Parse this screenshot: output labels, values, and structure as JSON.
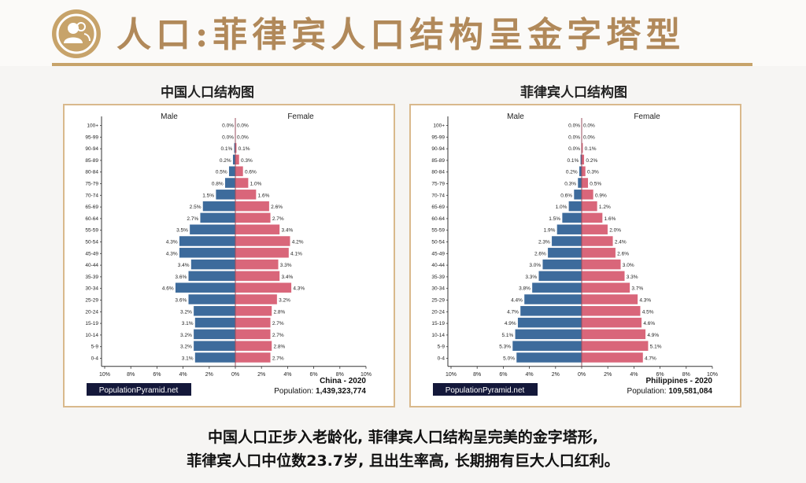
{
  "header": {
    "title": "人口:菲律宾人口结构呈金字塔型",
    "badge_icon": "user-group-icon"
  },
  "colors": {
    "male": "#3d6b9c",
    "female": "#d9667a",
    "accent": "#c7a36a",
    "frame": "#d9b98c"
  },
  "caption": {
    "line1": "中国人口正步入老龄化, 菲律宾人口结构呈完美的金字塔形,",
    "line2": "菲律宾人口中位数23.7岁, 且出生率高, 长期拥有巨大人口红利。"
  },
  "chart_data": [
    {
      "type": "bar",
      "title": "中国人口结构图",
      "left_label": "Male",
      "right_label": "Female",
      "age_groups": [
        "100+",
        "95-99",
        "90-94",
        "85-89",
        "80-84",
        "75-79",
        "70-74",
        "65-69",
        "60-64",
        "55-59",
        "50-54",
        "45-49",
        "40-44",
        "35-39",
        "30-34",
        "25-29",
        "20-24",
        "15-19",
        "10-14",
        "5-9",
        "0-4"
      ],
      "series": [
        {
          "name": "Male",
          "values": [
            0.0,
            0.0,
            0.1,
            0.2,
            0.5,
            0.8,
            1.5,
            2.5,
            2.7,
            3.5,
            4.3,
            4.3,
            3.4,
            3.6,
            4.6,
            3.6,
            3.2,
            3.1,
            3.2,
            3.2,
            3.1
          ]
        },
        {
          "name": "Female",
          "values": [
            0.0,
            0.0,
            0.1,
            0.3,
            0.6,
            1.0,
            1.6,
            2.6,
            2.7,
            3.4,
            4.2,
            4.1,
            3.3,
            3.4,
            4.3,
            3.2,
            2.8,
            2.7,
            2.7,
            2.8,
            2.7
          ]
        }
      ],
      "x_ticks": [
        "10%",
        "8%",
        "6%",
        "4%",
        "2%",
        "0%",
        "2%",
        "4%",
        "6%",
        "8%",
        "10%"
      ],
      "xlim": [
        -10,
        10
      ],
      "source": "PopulationPyramid.net",
      "region_label": "China - 2020",
      "population_label": "Population:",
      "population_value": "1,439,323,774"
    },
    {
      "type": "bar",
      "title": "菲律宾人口结构图",
      "left_label": "Male",
      "right_label": "Female",
      "age_groups": [
        "100+",
        "95-99",
        "90-94",
        "85-89",
        "80-84",
        "75-79",
        "70-74",
        "65-69",
        "60-64",
        "55-59",
        "50-54",
        "45-49",
        "40-44",
        "35-39",
        "30-34",
        "25-29",
        "20-24",
        "15-19",
        "10-14",
        "5-9",
        "0-4"
      ],
      "series": [
        {
          "name": "Male",
          "values": [
            0.0,
            0.0,
            0.0,
            0.1,
            0.2,
            0.3,
            0.6,
            1.0,
            1.5,
            1.9,
            2.3,
            2.6,
            3.0,
            3.3,
            3.8,
            4.4,
            4.7,
            4.9,
            5.1,
            5.3,
            5.0
          ]
        },
        {
          "name": "Female",
          "values": [
            0.0,
            0.0,
            0.1,
            0.2,
            0.3,
            0.5,
            0.9,
            1.2,
            1.6,
            2.0,
            2.4,
            2.6,
            3.0,
            3.3,
            3.7,
            4.3,
            4.5,
            4.6,
            4.9,
            5.1,
            4.7
          ]
        }
      ],
      "x_ticks": [
        "10%",
        "8%",
        "6%",
        "4%",
        "2%",
        "0%",
        "2%",
        "4%",
        "6%",
        "8%",
        "10%"
      ],
      "xlim": [
        -10,
        10
      ],
      "source": "PopulationPyramid.net",
      "region_label": "Philippines - 2020",
      "population_label": "Population:",
      "population_value": "109,581,084"
    }
  ]
}
